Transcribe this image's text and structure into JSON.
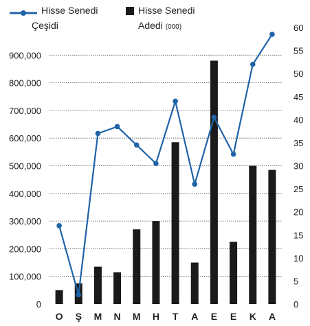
{
  "legend": {
    "line_label_1": "Hisse Senedi",
    "line_label_2": "Çeşidi",
    "bar_label_1": "Hisse Senedi",
    "bar_label_2": "Adedi",
    "bar_unit": "(000)"
  },
  "colors": {
    "line": "#1f63a8",
    "bar": "#1a1a1a",
    "grid": "#555555"
  },
  "chart_data": {
    "type": "bar+line",
    "categories": [
      "O",
      "Ş",
      "M",
      "N",
      "M",
      "H",
      "T",
      "A",
      "E",
      "E",
      "K",
      "A"
    ],
    "left_axis": {
      "ylim": [
        0,
        1000000
      ],
      "tick_values": [
        0,
        100000,
        200000,
        300000,
        400000,
        500000,
        600000,
        700000,
        800000,
        900000
      ],
      "tick_labels": [
        "0",
        "100,000",
        "200,000",
        "300,000",
        "400,000",
        "500,000",
        "600,000",
        "700,000",
        "800,000",
        "900,000"
      ]
    },
    "right_axis": {
      "ylim": [
        0,
        60
      ],
      "tick_values": [
        0,
        5,
        10,
        15,
        20,
        25,
        30,
        35,
        40,
        45,
        50,
        55,
        60
      ],
      "tick_labels": [
        "0",
        "5",
        "10",
        "15",
        "20",
        "25",
        "30",
        "35",
        "40",
        "45",
        "50",
        "55",
        "60"
      ]
    },
    "grid": true,
    "series": [
      {
        "name": "Hisse Senedi Adedi (000)",
        "type": "bar",
        "axis": "left",
        "values": [
          50000,
          75000,
          135000,
          115000,
          270000,
          300000,
          585000,
          150000,
          880000,
          225000,
          500000,
          485000
        ]
      },
      {
        "name": "Hisse Senedi Çeşidi",
        "type": "line",
        "axis": "right",
        "values": [
          17,
          2,
          37,
          38.5,
          34.5,
          30.5,
          44,
          26,
          40.5,
          32.5,
          52,
          58.5
        ]
      }
    ]
  }
}
